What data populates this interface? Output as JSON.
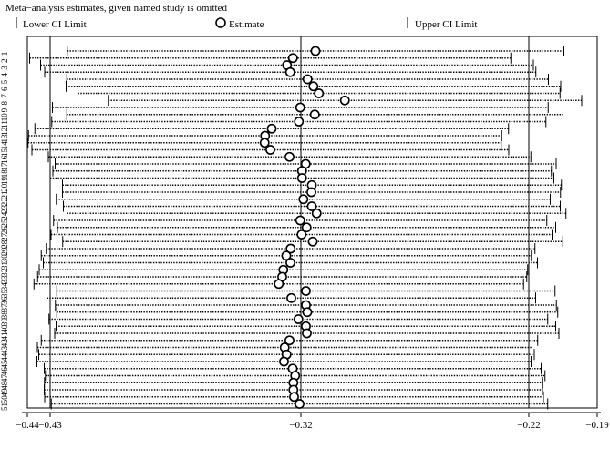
{
  "chart_data": {
    "type": "scatter",
    "title": "Meta−analysis estimates, given named study is omitted",
    "legend": {
      "placement": "top",
      "entries": [
        {
          "key": "lower",
          "label": "Lower CI Limit",
          "marker": "tick"
        },
        {
          "key": "estimate",
          "label": "Estimate",
          "marker": "circle"
        },
        {
          "key": "upper",
          "label": "Upper CI Limit",
          "marker": "tick"
        }
      ]
    },
    "xlim": [
      -0.44,
      -0.19
    ],
    "x_ticks": [
      {
        "value": -0.44,
        "label": "−0.44"
      },
      {
        "value": -0.43,
        "label": "−0.43"
      },
      {
        "value": -0.32,
        "label": "−0.32"
      },
      {
        "value": -0.22,
        "label": "−0.22"
      },
      {
        "value": -0.19,
        "label": "−0.19"
      }
    ],
    "reference_lines": [
      -0.43,
      -0.32,
      -0.22
    ],
    "grid": false,
    "study_labels": [
      "1",
      "2",
      "3",
      "4",
      "5",
      "6",
      "7",
      "8",
      "9",
      "10",
      "11",
      "12",
      "13",
      "14",
      "15",
      "16",
      "17",
      "18",
      "19",
      "20",
      "21",
      "22",
      "23",
      "24",
      "25",
      "26",
      "27",
      "28",
      "29",
      "30",
      "31",
      "32",
      "33",
      "34",
      "35",
      "36",
      "37",
      "38",
      "39",
      "40",
      "41",
      "42",
      "43",
      "44",
      "45",
      "46",
      "47",
      "48",
      "49",
      "50",
      "51"
    ],
    "estimate": [
      -0.3136,
      -0.3235,
      -0.3261,
      -0.3247,
      -0.3171,
      -0.3145,
      -0.3121,
      -0.3007,
      -0.3203,
      -0.3139,
      -0.3209,
      -0.3328,
      -0.3357,
      -0.3359,
      -0.3334,
      -0.325,
      -0.3179,
      -0.3195,
      -0.3195,
      -0.3152,
      -0.3154,
      -0.3189,
      -0.3152,
      -0.3131,
      -0.3203,
      -0.3175,
      -0.3197,
      -0.3148,
      -0.3245,
      -0.3264,
      -0.3246,
      -0.3277,
      -0.3282,
      -0.3297,
      -0.3178,
      -0.3242,
      -0.3178,
      -0.3172,
      -0.3211,
      -0.3178,
      -0.3174,
      -0.325,
      -0.3271,
      -0.3263,
      -0.3274,
      -0.3236,
      -0.3225,
      -0.3233,
      -0.3233,
      -0.323,
      -0.3206
    ],
    "lower_ci": [
      -0.4225,
      -0.439,
      -0.4342,
      -0.4324,
      -0.4227,
      -0.423,
      -0.4178,
      -0.4045,
      -0.429,
      -0.4227,
      -0.4293,
      -0.4367,
      -0.4395,
      -0.4397,
      -0.438,
      -0.4308,
      -0.4278,
      -0.4288,
      -0.43,
      -0.4246,
      -0.4246,
      -0.4273,
      -0.4242,
      -0.4226,
      -0.4285,
      -0.4268,
      -0.4296,
      -0.4245,
      -0.4317,
      -0.4339,
      -0.433,
      -0.4348,
      -0.4355,
      -0.4371,
      -0.4271,
      -0.4314,
      -0.4277,
      -0.4271,
      -0.4305,
      -0.4274,
      -0.428,
      -0.4339,
      -0.4356,
      -0.435,
      -0.4358,
      -0.4326,
      -0.4321,
      -0.4325,
      -0.4326,
      -0.4324,
      -0.4295
    ],
    "upper_ci": [
      -0.2046,
      -0.2279,
      -0.218,
      -0.2169,
      -0.2114,
      -0.206,
      -0.2063,
      -0.1968,
      -0.2115,
      -0.205,
      -0.2125,
      -0.2289,
      -0.2319,
      -0.2321,
      -0.2288,
      -0.2191,
      -0.208,
      -0.2101,
      -0.209,
      -0.2057,
      -0.2061,
      -0.2106,
      -0.2062,
      -0.2037,
      -0.2121,
      -0.2082,
      -0.2098,
      -0.2051,
      -0.2173,
      -0.2189,
      -0.2162,
      -0.2205,
      -0.2209,
      -0.2223,
      -0.2085,
      -0.217,
      -0.2079,
      -0.2073,
      -0.2117,
      -0.2082,
      -0.2068,
      -0.2161,
      -0.2186,
      -0.2176,
      -0.219,
      -0.2146,
      -0.2129,
      -0.2141,
      -0.214,
      -0.2136,
      -0.2117
    ]
  }
}
